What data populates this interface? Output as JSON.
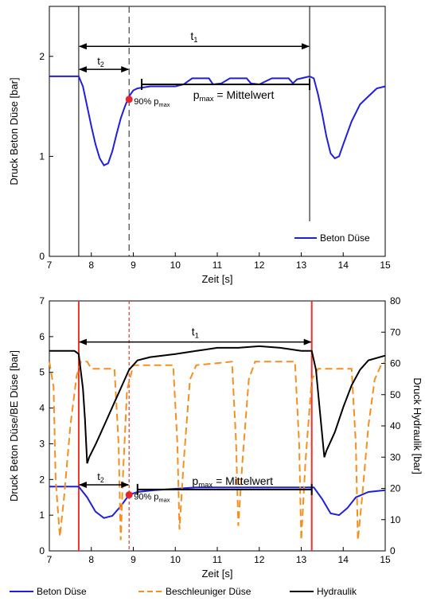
{
  "chart_data": [
    {
      "type": "line",
      "ylabel": "Druck Beton Düse [bar]",
      "xlabel": "Zeit [s]",
      "xlim": [
        7,
        15
      ],
      "ylim": [
        0,
        2.5
      ],
      "xticks": [
        "7",
        "8",
        "9",
        "10",
        "11",
        "12",
        "13",
        "14",
        "15"
      ],
      "yticks": [
        "0",
        "1",
        "2"
      ],
      "legend": {
        "placement": "bottom-right",
        "entries": [
          "Beton Düse"
        ]
      },
      "series": [
        {
          "name": "Beton Düse",
          "color": "#1f1fdd",
          "style": "solid",
          "points": [
            [
              7.0,
              1.8
            ],
            [
              7.7,
              1.8
            ],
            [
              7.8,
              1.7
            ],
            [
              7.9,
              1.5
            ],
            [
              8.0,
              1.3
            ],
            [
              8.1,
              1.12
            ],
            [
              8.2,
              0.98
            ],
            [
              8.3,
              0.91
            ],
            [
              8.4,
              0.93
            ],
            [
              8.5,
              1.05
            ],
            [
              8.6,
              1.22
            ],
            [
              8.7,
              1.38
            ],
            [
              8.8,
              1.5
            ],
            [
              8.9,
              1.6
            ],
            [
              9.0,
              1.66
            ],
            [
              9.1,
              1.68
            ],
            [
              9.4,
              1.7
            ],
            [
              9.7,
              1.7
            ],
            [
              10.0,
              1.7
            ],
            [
              10.2,
              1.72
            ],
            [
              10.4,
              1.78
            ],
            [
              10.8,
              1.78
            ],
            [
              10.9,
              1.72
            ],
            [
              11.1,
              1.73
            ],
            [
              11.3,
              1.78
            ],
            [
              11.7,
              1.78
            ],
            [
              11.8,
              1.73
            ],
            [
              12.0,
              1.72
            ],
            [
              12.3,
              1.78
            ],
            [
              12.7,
              1.78
            ],
            [
              12.8,
              1.73
            ],
            [
              12.9,
              1.77
            ],
            [
              13.2,
              1.8
            ],
            [
              13.3,
              1.78
            ],
            [
              13.4,
              1.62
            ],
            [
              13.5,
              1.42
            ],
            [
              13.6,
              1.2
            ],
            [
              13.7,
              1.03
            ],
            [
              13.8,
              0.98
            ],
            [
              13.9,
              1.0
            ],
            [
              14.0,
              1.12
            ],
            [
              14.2,
              1.35
            ],
            [
              14.4,
              1.52
            ],
            [
              14.6,
              1.6
            ],
            [
              14.8,
              1.68
            ],
            [
              15.0,
              1.7
            ]
          ]
        }
      ],
      "vlines": [
        7.7,
        13.2
      ],
      "vline_dashed": 8.9,
      "marker": {
        "x": 8.9,
        "y": 1.57,
        "label": "90% p",
        "label_sub": "max"
      },
      "annotations": {
        "t1": {
          "label": "t",
          "sub": "1",
          "from": 7.7,
          "to": 13.2,
          "y": 2.1
        },
        "t2": {
          "label": "t",
          "sub": "2",
          "from": 7.7,
          "to": 8.9,
          "y": 1.87
        },
        "pmax": {
          "label_main": "p",
          "label_sub": "max",
          "label_tail": " = Mittelwert",
          "from": 9.2,
          "to": 13.2,
          "y": 1.72
        }
      }
    },
    {
      "type": "line",
      "ylabel": "Druck Beton Düse/BE Düse [bar]",
      "y2label": "Druck Hydraulik [bar]",
      "xlabel": "Zeit [s]",
      "xlim": [
        7,
        15
      ],
      "ylim": [
        0,
        7
      ],
      "y2lim": [
        0,
        80
      ],
      "xticks": [
        "7",
        "8",
        "9",
        "10",
        "11",
        "12",
        "13",
        "14",
        "15"
      ],
      "yticks": [
        "0",
        "1",
        "2",
        "3",
        "4",
        "5",
        "6",
        "7"
      ],
      "y2ticks": [
        "0",
        "10",
        "20",
        "30",
        "40",
        "50",
        "60",
        "70",
        "80"
      ],
      "legend": {
        "placement": "bottom",
        "entries": [
          "Beton Düse",
          "Beschleuniger Düse",
          "Hydraulik"
        ]
      },
      "series": [
        {
          "name": "Beton Düse",
          "color": "#1f1fdd",
          "style": "solid",
          "axis": "left",
          "points": [
            [
              7.0,
              1.8
            ],
            [
              7.7,
              1.8
            ],
            [
              7.9,
              1.5
            ],
            [
              8.1,
              1.1
            ],
            [
              8.3,
              0.92
            ],
            [
              8.5,
              0.98
            ],
            [
              8.7,
              1.25
            ],
            [
              8.9,
              1.57
            ],
            [
              9.1,
              1.65
            ],
            [
              9.5,
              1.7
            ],
            [
              10.5,
              1.78
            ],
            [
              12.9,
              1.78
            ],
            [
              13.3,
              1.78
            ],
            [
              13.5,
              1.45
            ],
            [
              13.7,
              1.05
            ],
            [
              13.9,
              1.0
            ],
            [
              14.1,
              1.2
            ],
            [
              14.3,
              1.5
            ],
            [
              14.6,
              1.65
            ],
            [
              15.0,
              1.7
            ]
          ]
        },
        {
          "name": "Beschleuniger Düse",
          "color": "#f5901e",
          "style": "dashed",
          "axis": "left",
          "points": [
            [
              7.0,
              5.3
            ],
            [
              7.1,
              4.6
            ],
            [
              7.15,
              2.0
            ],
            [
              7.25,
              0.4
            ],
            [
              7.35,
              1.5
            ],
            [
              7.5,
              3.5
            ],
            [
              7.65,
              4.9
            ],
            [
              7.75,
              5.3
            ],
            [
              7.9,
              5.3
            ],
            [
              8.0,
              5.1
            ],
            [
              8.4,
              5.1
            ],
            [
              8.55,
              5.1
            ],
            [
              8.65,
              3.0
            ],
            [
              8.7,
              0.3
            ],
            [
              8.75,
              2.0
            ],
            [
              8.85,
              4.5
            ],
            [
              9.0,
              5.2
            ],
            [
              9.95,
              5.2
            ],
            [
              10.05,
              3.0
            ],
            [
              10.1,
              0.6
            ],
            [
              10.2,
              2.5
            ],
            [
              10.35,
              4.8
            ],
            [
              10.5,
              5.2
            ],
            [
              11.35,
              5.3
            ],
            [
              11.45,
              3.0
            ],
            [
              11.5,
              0.7
            ],
            [
              11.6,
              2.5
            ],
            [
              11.75,
              4.8
            ],
            [
              11.9,
              5.3
            ],
            [
              12.85,
              5.3
            ],
            [
              12.95,
              3.0
            ],
            [
              13.0,
              0.3
            ],
            [
              13.1,
              2.5
            ],
            [
              13.25,
              4.8
            ],
            [
              13.4,
              5.1
            ],
            [
              14.2,
              5.1
            ],
            [
              14.3,
              3.0
            ],
            [
              14.35,
              0.3
            ],
            [
              14.45,
              1.5
            ],
            [
              14.6,
              3.5
            ],
            [
              14.75,
              4.8
            ],
            [
              14.9,
              5.2
            ],
            [
              15.0,
              5.3
            ]
          ]
        },
        {
          "name": "Hydraulik",
          "color": "#000000",
          "style": "solid",
          "axis": "right",
          "points": [
            [
              7.0,
              64
            ],
            [
              7.6,
              64
            ],
            [
              7.7,
              63
            ],
            [
              7.8,
              52
            ],
            [
              7.85,
              42
            ],
            [
              7.9,
              28
            ],
            [
              7.95,
              30
            ],
            [
              8.1,
              34
            ],
            [
              8.3,
              40
            ],
            [
              8.5,
              46
            ],
            [
              8.7,
              52
            ],
            [
              8.9,
              58
            ],
            [
              9.1,
              61
            ],
            [
              9.4,
              62
            ],
            [
              10.0,
              63
            ],
            [
              10.5,
              64
            ],
            [
              11.0,
              65
            ],
            [
              11.5,
              65
            ],
            [
              12.0,
              65.5
            ],
            [
              12.5,
              65
            ],
            [
              13.0,
              64
            ],
            [
              13.25,
              64
            ],
            [
              13.35,
              58
            ],
            [
              13.45,
              44
            ],
            [
              13.55,
              30
            ],
            [
              13.6,
              32
            ],
            [
              13.8,
              38
            ],
            [
              14.0,
              46
            ],
            [
              14.2,
              53
            ],
            [
              14.4,
              58
            ],
            [
              14.6,
              61
            ],
            [
              15.0,
              62.5
            ]
          ]
        }
      ],
      "vlines": [
        7.7,
        13.25
      ],
      "vline_color": "#e8352b",
      "vline_dashed": 8.9,
      "vline_dashed_color": "#e8352b",
      "marker": {
        "x": 8.9,
        "y": 1.57,
        "label": "90% p",
        "label_sub": "max"
      },
      "annotations": {
        "t1": {
          "label": "t",
          "sub": "1",
          "from": 7.7,
          "to": 13.25,
          "y": 5.85
        },
        "t2": {
          "label": "t",
          "sub": "2",
          "from": 7.7,
          "to": 8.9,
          "y": 1.85
        },
        "pmax": {
          "label_main": "p",
          "label_sub": "max",
          "label_tail": " = Mittelwert",
          "from": 9.1,
          "to": 13.25,
          "y": 1.72
        }
      }
    }
  ]
}
